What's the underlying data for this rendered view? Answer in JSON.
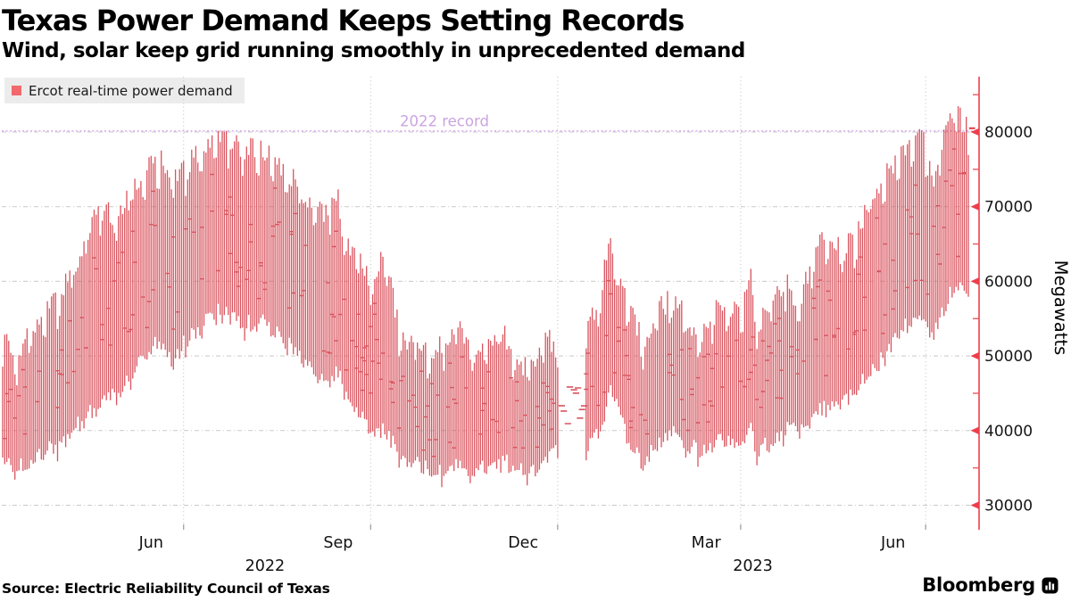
{
  "header": {
    "title": "Texas Power Demand Keeps Setting Records",
    "subtitle": "Wind, solar keep grid running smoothly in unprecedented demand"
  },
  "legend": {
    "label": "Ercot real-time power demand",
    "swatch_color": "#f2696e"
  },
  "footer": {
    "source": "Source: Electric Reliability Council of Texas",
    "brand": "Bloomberg"
  },
  "colors": {
    "bar": "#d9545e",
    "axis": "#f05560",
    "grid": "#c9c9c9",
    "record_line": "#dcb6ef",
    "record_text": "#cba4e0",
    "tick_label": "#161616"
  },
  "chart_data": {
    "type": "range-bar",
    "title": "Ercot real-time power demand",
    "ylabel": "Megawatts",
    "ylim": [
      27000,
      87000
    ],
    "y_ticks": [
      30000,
      40000,
      50000,
      60000,
      70000,
      80000
    ],
    "y_minor_ticks": [
      35000,
      45000,
      55000,
      65000,
      75000,
      85000
    ],
    "grid": true,
    "legend_position": "top-left",
    "x_start_date": "2022-04-03",
    "x_end_date": "2023-07-22",
    "x_gridline_dates": [
      "2022-07-01",
      "2022-10-01",
      "2023-01-01",
      "2023-04-01",
      "2023-07-01"
    ],
    "x_month_labels": [
      {
        "label": "Jun",
        "date": "2022-06-15"
      },
      {
        "label": "Sep",
        "date": "2022-09-15"
      },
      {
        "label": "Dec",
        "date": "2022-12-15"
      },
      {
        "label": "Mar",
        "date": "2023-03-15"
      },
      {
        "label": "Jun",
        "date": "2023-06-15"
      }
    ],
    "x_year_labels": [
      {
        "label": "2022",
        "date": "2022-08-10"
      },
      {
        "label": "2023",
        "date": "2023-04-07"
      }
    ],
    "record_line": {
      "value": 80150,
      "label": "2022 record"
    },
    "series": [
      {
        "name": "Ercot real-time power demand",
        "unit": "megawatts",
        "envelope_points": [
          [
            0,
            36000,
            52000
          ],
          [
            7,
            35000,
            50000
          ],
          [
            14,
            36000,
            54000
          ],
          [
            21,
            37000,
            56000
          ],
          [
            28,
            38000,
            58000
          ],
          [
            35,
            40000,
            62000
          ],
          [
            42,
            42000,
            67000
          ],
          [
            49,
            44000,
            70000
          ],
          [
            56,
            45000,
            68500
          ],
          [
            63,
            47000,
            72000
          ],
          [
            70,
            50000,
            75000
          ],
          [
            77,
            52000,
            76500
          ],
          [
            84,
            50000,
            74000
          ],
          [
            91,
            52000,
            75500
          ],
          [
            98,
            54000,
            78000
          ],
          [
            105,
            56000,
            80100
          ],
          [
            112,
            55000,
            79000
          ],
          [
            119,
            54000,
            77500
          ],
          [
            126,
            55000,
            78000
          ],
          [
            133,
            54000,
            76000
          ],
          [
            140,
            52000,
            74500
          ],
          [
            147,
            50000,
            72500
          ],
          [
            154,
            47000,
            69000
          ],
          [
            161,
            46000,
            70000
          ],
          [
            165,
            48000,
            71500
          ],
          [
            168,
            45000,
            66000
          ],
          [
            175,
            43000,
            63000
          ],
          [
            182,
            40000,
            60000
          ],
          [
            187,
            40000,
            64000
          ],
          [
            192,
            38000,
            58000
          ],
          [
            196,
            36000,
            52000
          ],
          [
            203,
            36000,
            53000
          ],
          [
            210,
            35000,
            50000
          ],
          [
            217,
            34000,
            52000
          ],
          [
            224,
            36000,
            55000
          ],
          [
            231,
            34000,
            50000
          ],
          [
            238,
            35000,
            52000
          ],
          [
            245,
            36000,
            54000
          ],
          [
            252,
            35000,
            50000
          ],
          [
            259,
            34000,
            48000
          ],
          [
            266,
            36000,
            52000
          ],
          [
            272,
            38000,
            52000
          ],
          [
            287,
            38000,
            54000
          ],
          [
            294,
            40000,
            58000
          ],
          [
            298,
            45000,
            65500
          ],
          [
            300,
            46000,
            66000
          ],
          [
            302,
            44000,
            61000
          ],
          [
            308,
            38000,
            56000
          ],
          [
            315,
            36000,
            52000
          ],
          [
            322,
            38000,
            56000
          ],
          [
            329,
            40000,
            58000
          ],
          [
            336,
            38000,
            55000
          ],
          [
            343,
            37000,
            53000
          ],
          [
            350,
            38000,
            56000
          ],
          [
            357,
            39000,
            57000
          ],
          [
            364,
            38000,
            55000
          ],
          [
            368,
            40000,
            63000
          ],
          [
            371,
            37000,
            53000
          ],
          [
            378,
            39000,
            58000
          ],
          [
            385,
            40000,
            60000
          ],
          [
            392,
            40000,
            57000
          ],
          [
            399,
            42000,
            64000
          ],
          [
            406,
            44000,
            66000
          ],
          [
            413,
            44000,
            64000
          ],
          [
            420,
            45000,
            66000
          ],
          [
            427,
            48000,
            71000
          ],
          [
            434,
            50000,
            74000
          ],
          [
            441,
            53000,
            77000
          ],
          [
            448,
            55000,
            79500
          ],
          [
            452,
            56000,
            80300
          ],
          [
            455,
            54000,
            77000
          ],
          [
            458,
            53000,
            74000
          ],
          [
            462,
            56000,
            79000
          ],
          [
            466,
            58000,
            81500
          ],
          [
            469,
            60000,
            83400
          ],
          [
            471,
            59000,
            82000
          ],
          [
            473,
            58000,
            81000
          ],
          [
            475,
            57500,
            80600
          ]
        ]
      }
    ],
    "data_gap": {
      "start_day": 274,
      "end_day": 286,
      "lo": 40000,
      "hi": 47000
    },
    "latest_value": 80500
  }
}
